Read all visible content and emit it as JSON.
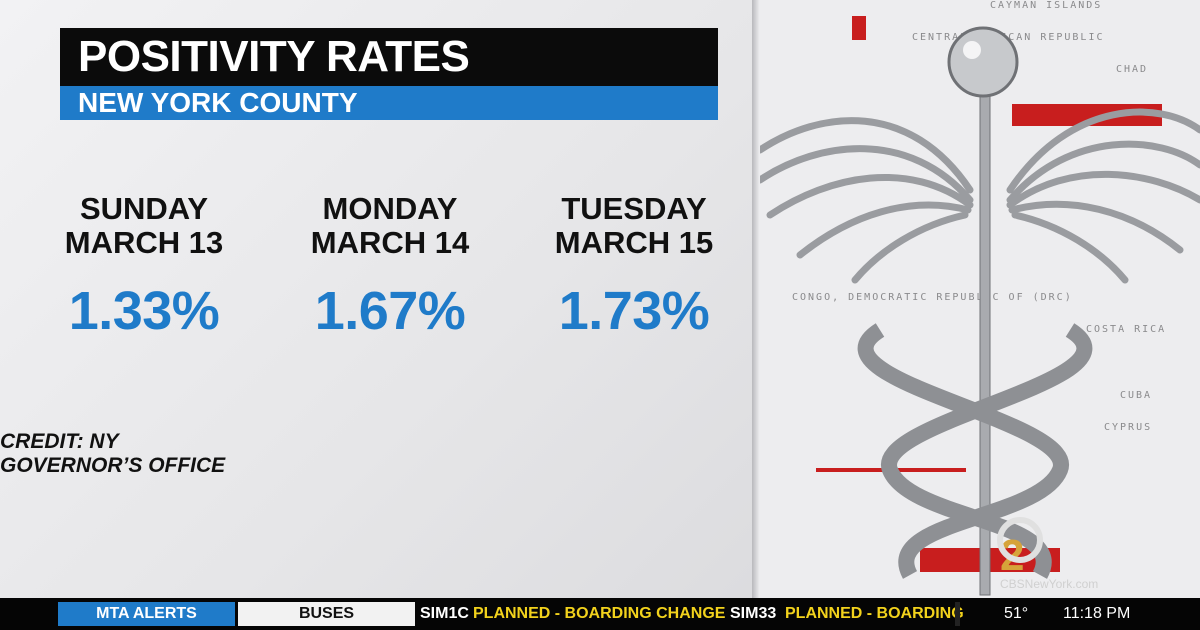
{
  "header": {
    "title": "POSITIVITY RATES",
    "subtitle": "NEW YORK COUNTY"
  },
  "days": [
    {
      "day": "SUNDAY",
      "date": "MARCH 13",
      "rate": "1.33%"
    },
    {
      "day": "MONDAY",
      "date": "MARCH 14",
      "rate": "1.67%"
    },
    {
      "day": "TUESDAY",
      "date": "MARCH 15",
      "rate": "1.73%"
    }
  ],
  "credit": "CREDIT: NY GOVERNOR’S OFFICE",
  "background_list": [
    "CAYMAN ISLANDS",
    "CENTRAL AFRICAN REPUBLIC",
    "CHAD",
    "CONGO, DEMOCRATIC REPUBLIC OF (DRC)",
    "COSTA RICA",
    "CUBA",
    "CYPRUS"
  ],
  "logo": {
    "number": "2",
    "watermark": "CBSNewYork.com"
  },
  "ticker": {
    "tab1": "MTA ALERTS",
    "tab2": "BUSES",
    "items": [
      {
        "route": "SIM1C",
        "status": "PLANNED - BOARDING CHANGE"
      },
      {
        "route": "SIM33",
        "status": "PLANNED - BOARDING"
      }
    ],
    "temperature": "51°",
    "time": "11:18 PM"
  }
}
